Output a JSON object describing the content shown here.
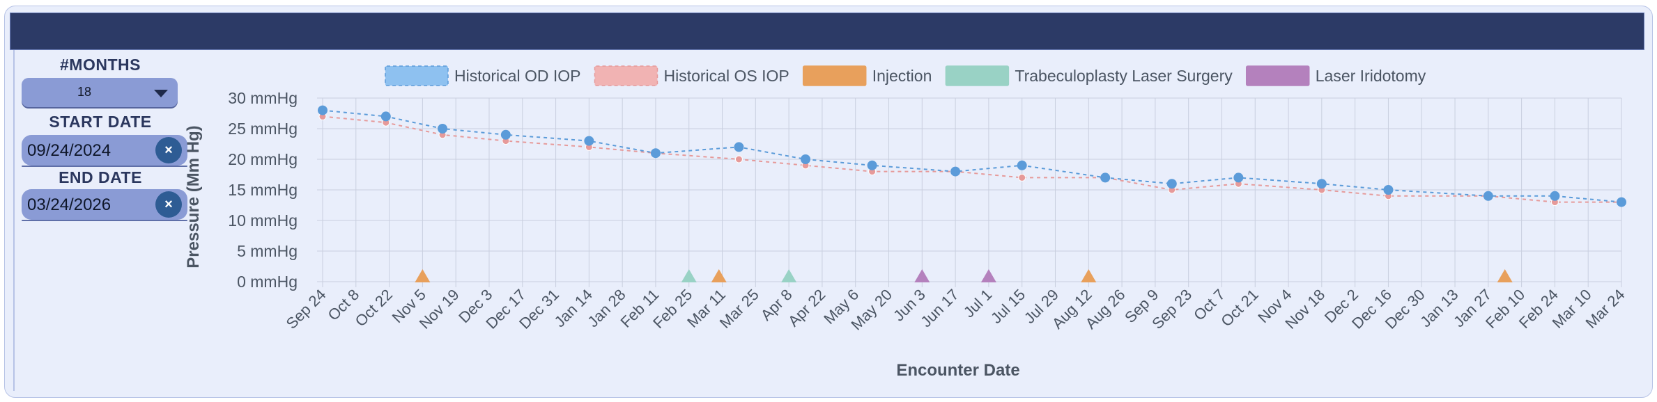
{
  "controls": {
    "months_label": "#MONTHS",
    "months_value": "18",
    "start_label": "START DATE",
    "start_value": "09/24/2024",
    "end_label": "END DATE",
    "end_value": "03/24/2026",
    "clear_symbol": "×",
    "clear_icon": "close-icon",
    "dropdown_icon": "chevron-down-icon"
  },
  "colors": {
    "header": "#2c3a66",
    "od": "#5b9bd9",
    "os": "#e69a9a",
    "injection": "#e8a05c",
    "trab": "#99d2c5",
    "iridotomy": "#b481bd",
    "grid": "#c9cfdf"
  },
  "chart_data": {
    "type": "line",
    "xlabel": "Encounter Date",
    "ylabel": "Pressure (Mm Hg)",
    "ylim": [
      0,
      30
    ],
    "yticks": [
      0,
      5,
      10,
      15,
      20,
      25,
      30
    ],
    "ytick_suffix": " mmHg",
    "grid": true,
    "legend_position": "top-center",
    "legend": [
      {
        "label": "Historical OD IOP",
        "color": "#8ec1f0",
        "border": "#5b9bd9",
        "dashed": true
      },
      {
        "label": "Historical OS IOP",
        "color": "#f1b3b3",
        "border": "#e69a9a",
        "dashed": true
      },
      {
        "label": "Injection",
        "color": "#e8a05c",
        "border": "#e8a05c",
        "dashed": false
      },
      {
        "label": "Trabeculoplasty Laser Surgery",
        "color": "#99d2c5",
        "border": "#99d2c5",
        "dashed": false
      },
      {
        "label": "Laser Iridotomy",
        "color": "#b481bd",
        "border": "#b481bd",
        "dashed": false
      }
    ],
    "x_categories": [
      "Sep 24",
      "Oct 8",
      "Oct 22",
      "Nov 5",
      "Nov 19",
      "Dec 3",
      "Dec 17",
      "Dec 31",
      "Jan 14",
      "Jan 28",
      "Feb 11",
      "Feb 25",
      "Mar 11",
      "Mar 25",
      "Apr 8",
      "Apr 22",
      "May 6",
      "May 20",
      "Jun 3",
      "Jun 17",
      "Jul 1",
      "Jul 15",
      "Jul 29",
      "Aug 12",
      "Aug 26",
      "Sep 9",
      "Sep 23",
      "Oct 7",
      "Oct 21",
      "Nov 4",
      "Nov 18",
      "Dec 2",
      "Dec 16",
      "Dec 30",
      "Jan 13",
      "Jan 27",
      "Feb 10",
      "Feb 24",
      "Mar 10",
      "Mar 24"
    ],
    "series": [
      {
        "name": "Historical OD IOP",
        "x": [
          0,
          1.9,
          3.6,
          5.5,
          8.0,
          10.0,
          12.5,
          14.5,
          16.5,
          19.0,
          21.0,
          23.5,
          25.5,
          27.5,
          30.0,
          32.0,
          35.0,
          37.0,
          39.0
        ],
        "y": [
          28,
          27,
          25,
          24,
          23,
          21,
          22,
          20,
          19,
          18,
          19,
          17,
          16,
          17,
          16,
          15,
          14,
          14,
          13
        ]
      },
      {
        "name": "Historical OS IOP",
        "x": [
          0,
          1.9,
          3.6,
          5.5,
          8.0,
          10.0,
          12.5,
          14.5,
          16.5,
          19.0,
          21.0,
          23.5,
          25.5,
          27.5,
          30.0,
          32.0,
          35.0,
          37.0,
          39.0
        ],
        "y": [
          27,
          26,
          24,
          23,
          22,
          21,
          20,
          19,
          18,
          18,
          17,
          17,
          15,
          16,
          15,
          14,
          14,
          13,
          13
        ]
      }
    ],
    "events": [
      {
        "type": "Injection",
        "x": 3.0
      },
      {
        "type": "Trabeculoplasty Laser Surgery",
        "x": 11.0
      },
      {
        "type": "Injection",
        "x": 11.9
      },
      {
        "type": "Trabeculoplasty Laser Surgery",
        "x": 14.0
      },
      {
        "type": "Laser Iridotomy",
        "x": 18.0
      },
      {
        "type": "Laser Iridotomy",
        "x": 20.0
      },
      {
        "type": "Injection",
        "x": 23.0
      },
      {
        "type": "Injection",
        "x": 35.5
      }
    ]
  }
}
